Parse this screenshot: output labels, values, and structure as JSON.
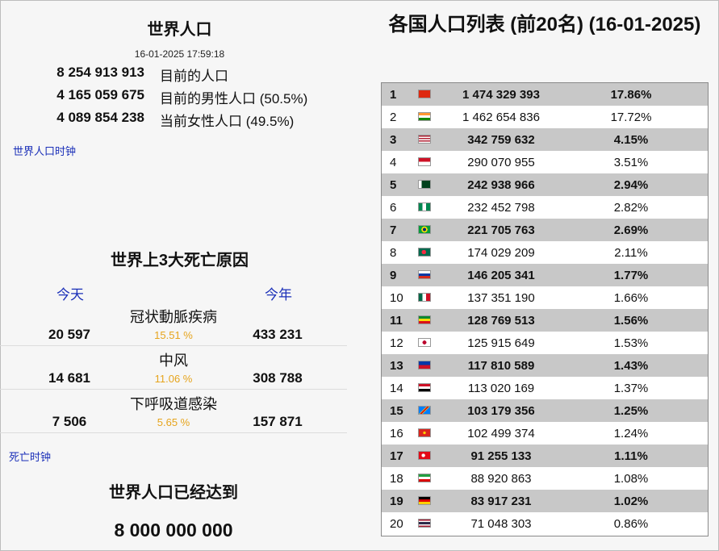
{
  "world_population": {
    "title": "世界人口",
    "timestamp": "16-01-2025 17:59:18",
    "rows": [
      {
        "value": "8 254 913 913",
        "label": "目前的人口"
      },
      {
        "value": "4 165 059 675",
        "label": "目前的男性人口 (50.5%)"
      },
      {
        "value": "4 089 854 238",
        "label": "当前女性人口 (49.5%)"
      }
    ],
    "clock_link": "世界人口时钟"
  },
  "death_causes": {
    "title": "世界上3大死亡原因",
    "today_label": "今天",
    "year_label": "今年",
    "items": [
      {
        "name": "冠状動脈疾病",
        "today": "20 597",
        "pct": "15.51 %",
        "year": "433 231"
      },
      {
        "name": "中风",
        "today": "14 681",
        "pct": "11.06 %",
        "year": "308 788"
      },
      {
        "name": "下呼吸道感染",
        "today": "7 506",
        "pct": "5.65 %",
        "year": "157 871"
      }
    ],
    "clock_link": "死亡时钟"
  },
  "milestone": {
    "title": "世界人口已经达到",
    "value": "8 000 000 000"
  },
  "country_list": {
    "title": "各国人口列表 (前20名) (16-01-2025)",
    "rows": [
      {
        "rank": "1",
        "flag": "china-flag-icon",
        "population": "1 474 329 393",
        "share": "17.86%"
      },
      {
        "rank": "2",
        "flag": "india-flag-icon",
        "population": "1 462 654 836",
        "share": "17.72%"
      },
      {
        "rank": "3",
        "flag": "usa-flag-icon",
        "population": "342 759 632",
        "share": "4.15%"
      },
      {
        "rank": "4",
        "flag": "indonesia-flag-icon",
        "population": "290 070 955",
        "share": "3.51%"
      },
      {
        "rank": "5",
        "flag": "pakistan-flag-icon",
        "population": "242 938 966",
        "share": "2.94%"
      },
      {
        "rank": "6",
        "flag": "nigeria-flag-icon",
        "population": "232 452 798",
        "share": "2.82%"
      },
      {
        "rank": "7",
        "flag": "brazil-flag-icon",
        "population": "221 705 763",
        "share": "2.69%"
      },
      {
        "rank": "8",
        "flag": "bangladesh-flag-icon",
        "population": "174 029 209",
        "share": "2.11%"
      },
      {
        "rank": "9",
        "flag": "russia-flag-icon",
        "population": "146 205 341",
        "share": "1.77%"
      },
      {
        "rank": "10",
        "flag": "mexico-flag-icon",
        "population": "137 351 190",
        "share": "1.66%"
      },
      {
        "rank": "11",
        "flag": "ethiopia-flag-icon",
        "population": "128 769 513",
        "share": "1.56%"
      },
      {
        "rank": "12",
        "flag": "japan-flag-icon",
        "population": "125 915 649",
        "share": "1.53%"
      },
      {
        "rank": "13",
        "flag": "philippines-flag-icon",
        "population": "117 810 589",
        "share": "1.43%"
      },
      {
        "rank": "14",
        "flag": "egypt-flag-icon",
        "population": "113 020 169",
        "share": "1.37%"
      },
      {
        "rank": "15",
        "flag": "dr-congo-flag-icon",
        "population": "103 179 356",
        "share": "1.25%"
      },
      {
        "rank": "16",
        "flag": "vietnam-flag-icon",
        "population": "102 499 374",
        "share": "1.24%"
      },
      {
        "rank": "17",
        "flag": "turkey-flag-icon",
        "population": "91 255 133",
        "share": "1.11%"
      },
      {
        "rank": "18",
        "flag": "iran-flag-icon",
        "population": "88 920 863",
        "share": "1.08%"
      },
      {
        "rank": "19",
        "flag": "germany-flag-icon",
        "population": "83 917 231",
        "share": "1.02%"
      },
      {
        "rank": "20",
        "flag": "thailand-flag-icon",
        "population": "71 048 303",
        "share": "0.86%"
      }
    ]
  },
  "colors": {
    "link": "#1a2fb8",
    "percent": "#e6a41c",
    "row_shaded": "#c8c8c8"
  }
}
